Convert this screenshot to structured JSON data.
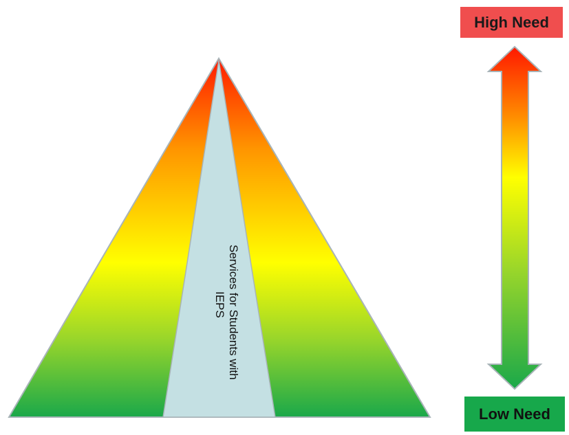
{
  "pyramid": {
    "center_label_line1": "Services for Students with",
    "center_label_line2": "IEPS"
  },
  "scale": {
    "high_label": "High Need",
    "low_label": "Low Need"
  },
  "colors": {
    "gradient_top": "#ff1a00",
    "gradient_orange": "#ff9900",
    "gradient_yellow": "#ffff00",
    "gradient_bottom": "#1aa84a",
    "center_wedge": "#c4e0e3",
    "high_badge": "#f04e4e",
    "low_badge": "#17a84b",
    "outline": "#a8b4b8"
  }
}
